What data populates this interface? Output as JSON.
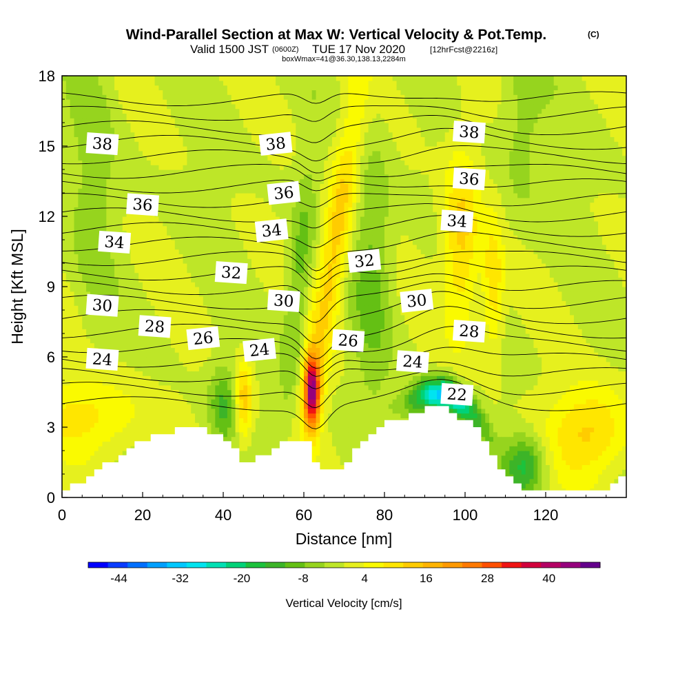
{
  "title": "Wind-Parallel Section at Max W: Vertical Velocity & Pot.Temp.",
  "title_mark": "(C)",
  "subtitle_valid": "Valid 1500 JST",
  "subtitle_utc": "(0600Z)",
  "subtitle_date": "TUE 17 Nov 2020",
  "subtitle_fcst": "[12hrFcst@2216z]",
  "subtitle_box": "boxWmax=41@36.30,138.13,2284m",
  "chart_data": {
    "type": "heatmap",
    "xlabel": "Distance [nm]",
    "ylabel": "Height [Kft MSL]",
    "xlim": [
      0,
      140
    ],
    "ylim": [
      0,
      18
    ],
    "x_ticks": [
      "0",
      "20",
      "40",
      "60",
      "80",
      "100",
      "120"
    ],
    "y_ticks": [
      "0",
      "3",
      "6",
      "9",
      "12",
      "15",
      "18"
    ],
    "colorbar": {
      "label": "Vertical Velocity [cm/s]",
      "tick_labels": [
        "-44",
        "-32",
        "-20",
        "-8",
        "4",
        "16",
        "28",
        "40"
      ],
      "levels": [
        -50,
        -46,
        -42,
        -38,
        -34,
        -30,
        -26,
        -22,
        -18,
        -14,
        -10,
        -6,
        -2,
        2,
        6,
        10,
        14,
        18,
        22,
        26,
        30,
        34,
        38,
        42,
        46,
        50
      ],
      "colors": [
        "#0000ff",
        "#0a3cff",
        "#0070ff",
        "#00a0ff",
        "#00c8ff",
        "#00e4f0",
        "#00e0b4",
        "#00d278",
        "#1cc23c",
        "#3cb428",
        "#64c014",
        "#96d41e",
        "#bee628",
        "#e6f01e",
        "#fafa00",
        "#ffe600",
        "#ffcc00",
        "#ffb400",
        "#ff9a00",
        "#ff7a00",
        "#ff5000",
        "#f01414",
        "#d2003c",
        "#b40064",
        "#96007d",
        "#64008c"
      ]
    },
    "w_field_features": [
      {
        "x": 62,
        "z": 4.5,
        "w": 48
      },
      {
        "x": 66,
        "z": 11,
        "w": 20
      },
      {
        "x": 45,
        "z": 4,
        "w": 18
      },
      {
        "x": 99,
        "z": 11,
        "w": 18
      },
      {
        "x": 107,
        "z": 9,
        "w": 14
      },
      {
        "x": 131,
        "z": 2.8,
        "w": 16
      },
      {
        "x": 6,
        "z": 3.5,
        "w": 10
      },
      {
        "x": 93,
        "z": 3.8,
        "w": -36
      },
      {
        "x": 40,
        "z": 4,
        "w": -12
      },
      {
        "x": 58,
        "z": 9,
        "w": -12
      },
      {
        "x": 77,
        "z": 10,
        "w": -10
      },
      {
        "x": 8,
        "z": 14,
        "w": -6
      },
      {
        "x": 115,
        "z": 1.5,
        "w": -18
      }
    ],
    "theta_labels": [
      {
        "text": "38",
        "x": 10,
        "z": 15.1
      },
      {
        "text": "38",
        "x": 53,
        "z": 15.1
      },
      {
        "text": "38",
        "x": 101,
        "z": 15.6
      },
      {
        "text": "36",
        "x": 20,
        "z": 12.5
      },
      {
        "text": "36",
        "x": 55,
        "z": 13.0
      },
      {
        "text": "36",
        "x": 101,
        "z": 13.6
      },
      {
        "text": "34",
        "x": 13,
        "z": 10.9
      },
      {
        "text": "34",
        "x": 52,
        "z": 11.4
      },
      {
        "text": "34",
        "x": 98,
        "z": 11.8
      },
      {
        "text": "32",
        "x": 42,
        "z": 9.6
      },
      {
        "text": "32",
        "x": 75,
        "z": 10.1
      },
      {
        "text": "30",
        "x": 10,
        "z": 8.2
      },
      {
        "text": "30",
        "x": 55,
        "z": 8.4
      },
      {
        "text": "30",
        "x": 88,
        "z": 8.4
      },
      {
        "text": "28",
        "x": 23,
        "z": 7.3
      },
      {
        "text": "28",
        "x": 101,
        "z": 7.1
      },
      {
        "text": "26",
        "x": 35,
        "z": 6.8
      },
      {
        "text": "26",
        "x": 71,
        "z": 6.7
      },
      {
        "text": "24",
        "x": 10,
        "z": 5.9
      },
      {
        "text": "24",
        "x": 49,
        "z": 6.3
      },
      {
        "text": "24",
        "x": 87,
        "z": 5.8
      },
      {
        "text": "22",
        "x": 98,
        "z": 4.4
      }
    ]
  }
}
